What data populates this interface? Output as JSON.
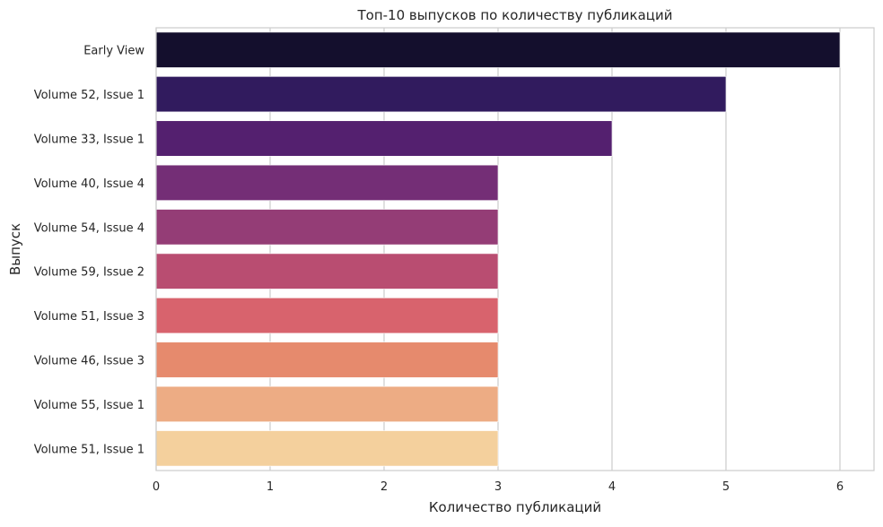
{
  "chart_data": {
    "type": "bar",
    "orientation": "horizontal",
    "title": "Топ-10 выпусков по количеству публикаций",
    "xlabel": "Количество публикаций",
    "ylabel": "Выпуск",
    "categories": [
      "Early View",
      "Volume 52, Issue 1",
      "Volume 33, Issue 1",
      "Volume 40, Issue 4",
      "Volume 54, Issue 4",
      "Volume 59, Issue 2",
      "Volume 51, Issue 3",
      "Volume 46, Issue 3",
      "Volume 55, Issue 1",
      "Volume 51, Issue 1"
    ],
    "values": [
      6,
      5,
      4,
      3,
      3,
      3,
      3,
      3,
      3,
      3
    ],
    "colors": [
      "#140f2d",
      "#311b5e",
      "#54206f",
      "#742e76",
      "#943d76",
      "#b94d71",
      "#d8636d",
      "#e68a6d",
      "#edac84",
      "#f4d09d"
    ],
    "xticks": [
      "0",
      "1",
      "2",
      "3",
      "4",
      "5",
      "6"
    ],
    "xlim": [
      0,
      6.3
    ],
    "grid": "vertical",
    "legend": "none"
  }
}
